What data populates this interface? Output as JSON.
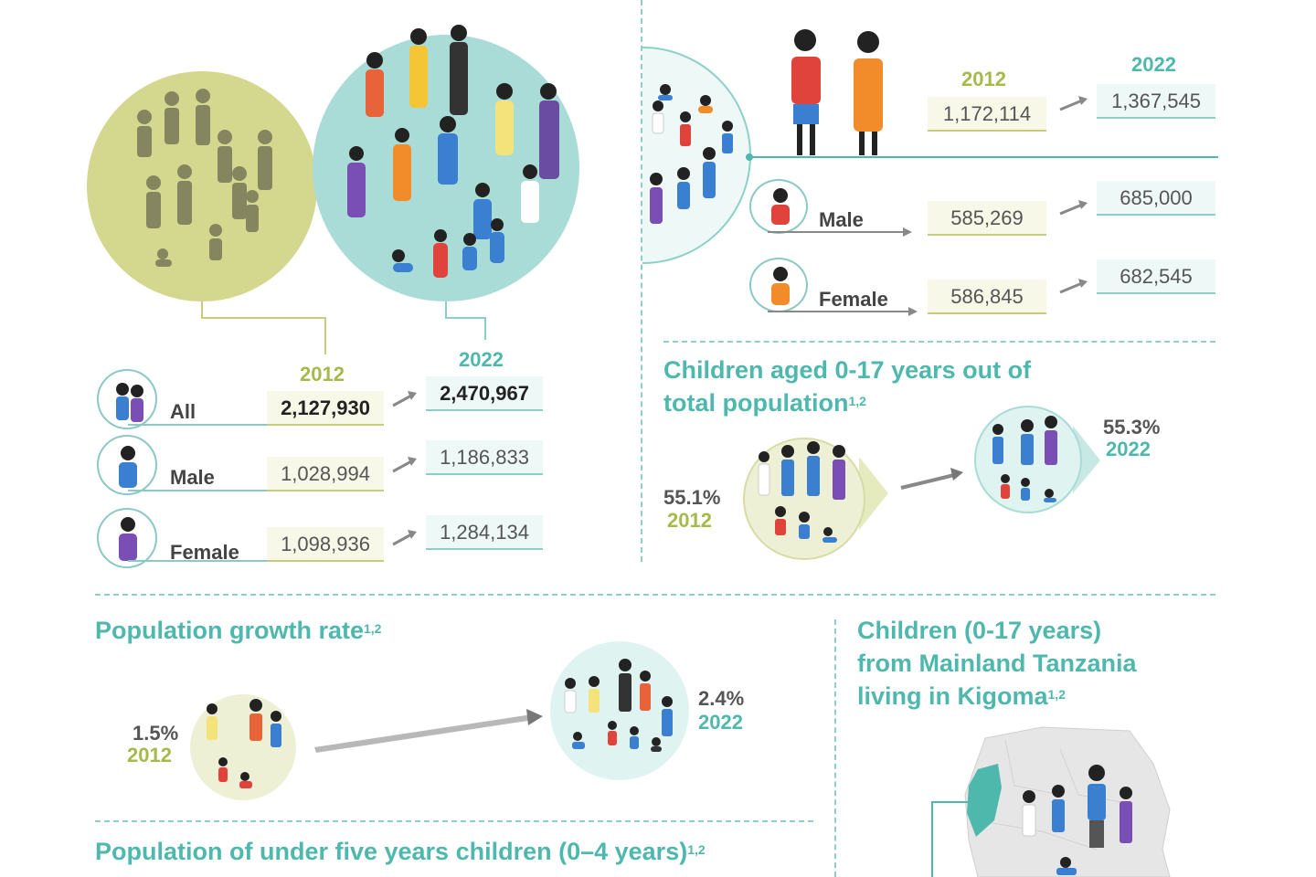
{
  "total_population": {
    "year_2012": "2012",
    "year_2022": "2022",
    "rows": [
      {
        "label": "All",
        "v2012": "2,127,930",
        "v2022": "2,470,967"
      },
      {
        "label": "Male",
        "v2012": "1,028,994",
        "v2022": "1,186,833"
      },
      {
        "label": "Female",
        "v2012": "1,098,936",
        "v2022": "1,284,134"
      }
    ]
  },
  "children_population": {
    "year_2012": "2012",
    "year_2022": "2022",
    "total_2012": "1,172,114",
    "total_2022": "1,367,545",
    "rows": [
      {
        "label": "Male",
        "v2012": "585,269",
        "v2022": "685,000"
      },
      {
        "label": "Female",
        "v2012": "586,845",
        "v2022": "682,545"
      }
    ]
  },
  "children_share": {
    "title_line1": "Children aged 0-17 years out of",
    "title_line2": "total population",
    "sup": "1,2",
    "pct_2012": "55.1%",
    "year_2012": "2012",
    "pct_2022": "55.3%",
    "year_2022": "2022"
  },
  "growth_rate": {
    "title": "Population growth rate",
    "sup": "1,2",
    "pct_2012": "1.5%",
    "year_2012": "2012",
    "pct_2022": "2.4%",
    "year_2022": "2022"
  },
  "kigoma": {
    "line1": "Children (0-17 years)",
    "line2": "from Mainland Tanzania",
    "line3": "living in Kigoma",
    "sup": "1,2"
  },
  "under_five": {
    "title": "Population of under five years children (0–4 years)",
    "sup": "1,2"
  },
  "colors": {
    "teal": "#4fb8ad",
    "olive": "#a8b84a",
    "olive_circle": "#d4d88f",
    "teal_circle": "#a9dcd6"
  }
}
